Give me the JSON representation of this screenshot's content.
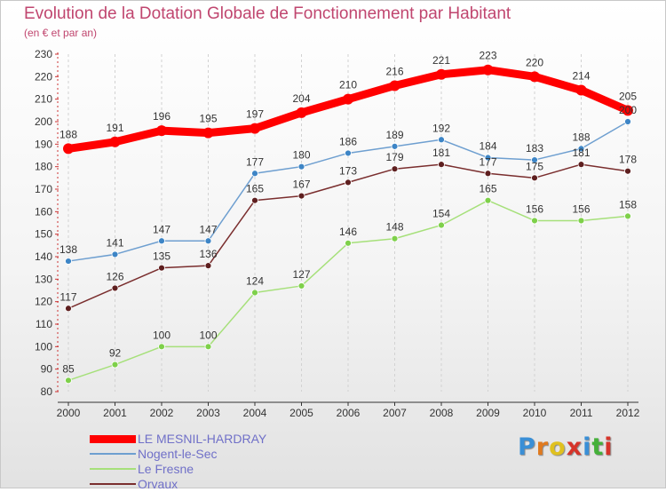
{
  "header": {
    "title": "Evolution de la Dotation Globale de Fonctionnement par Habitant",
    "subtitle": "(en € et par an)"
  },
  "logo": {
    "text": "Proxiti",
    "colors": [
      "#3a8fd6",
      "#e07a1f",
      "#e0c11f",
      "#d6342a",
      "#3a8fd6",
      "#45b03a",
      "#d6342a"
    ]
  },
  "chart_data": {
    "type": "line",
    "title": "Evolution de la Dotation Globale de Fonctionnement par Habitant",
    "subtitle": "(en € et par an)",
    "x": [
      2000,
      2001,
      2002,
      2003,
      2004,
      2005,
      2006,
      2007,
      2008,
      2009,
      2010,
      2011,
      2012
    ],
    "ylim": [
      80,
      230
    ],
    "yticks": [
      80,
      90,
      100,
      110,
      120,
      130,
      140,
      150,
      160,
      170,
      180,
      190,
      200,
      210,
      220,
      230
    ],
    "grid": "vertical-dashed",
    "legend": "bottom-left",
    "series": [
      {
        "name": "LE MESNIL-HARDRAY",
        "color": "#ff0000",
        "values": [
          188,
          191,
          196,
          195,
          197,
          204,
          210,
          216,
          221,
          223,
          220,
          214,
          205
        ]
      },
      {
        "name": "Nogent-le-Sec",
        "color": "#6e9fd0",
        "marker": "#3d85c6",
        "values": [
          138,
          141,
          147,
          147,
          177,
          180,
          186,
          189,
          192,
          184,
          183,
          188,
          200
        ]
      },
      {
        "name": "Le Fresne",
        "color": "#a6e07a",
        "marker": "#7ed04a",
        "values": [
          85,
          92,
          100,
          100,
          124,
          127,
          146,
          148,
          154,
          165,
          156,
          156,
          158
        ]
      },
      {
        "name": "Orvaux",
        "color": "#7a2e2e",
        "marker": "#5e1f1f",
        "values": [
          117,
          126,
          135,
          136,
          165,
          167,
          173,
          179,
          181,
          177,
          175,
          181,
          178
        ]
      }
    ]
  }
}
